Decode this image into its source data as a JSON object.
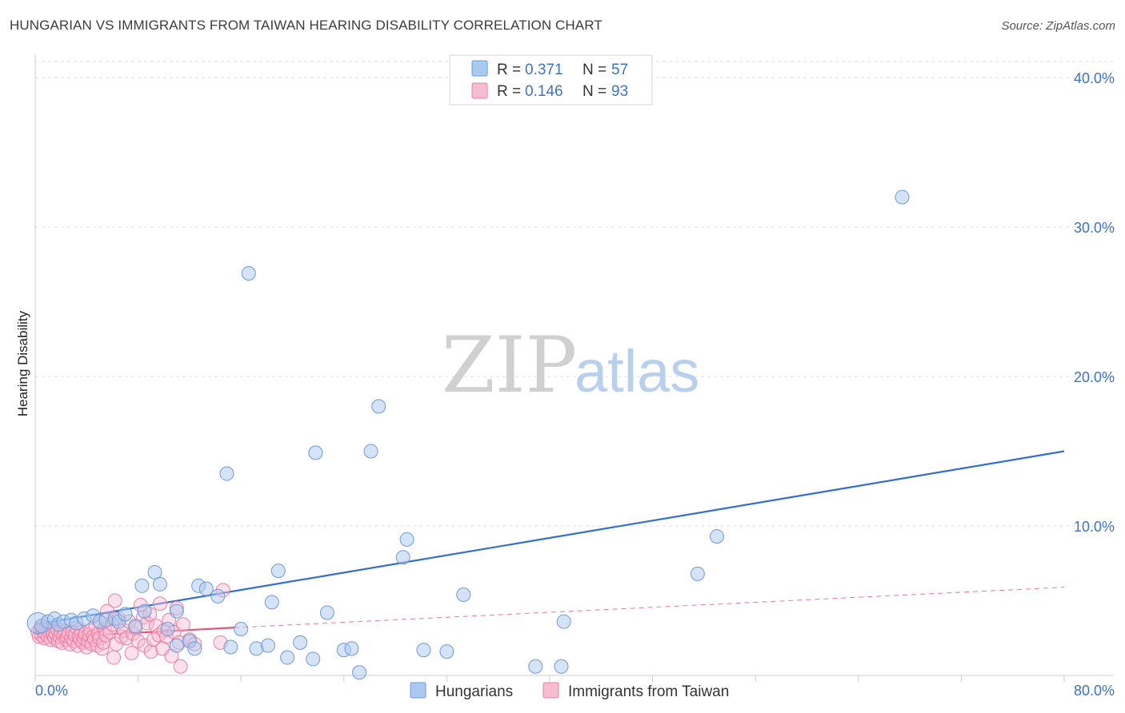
{
  "header": {
    "title": "HUNGARIAN VS IMMIGRANTS FROM TAIWAN HEARING DISABILITY CORRELATION CHART",
    "source": "Source: ZipAtlas.com"
  },
  "watermark": {
    "zip": "ZIP",
    "atlas": "atlas"
  },
  "legend": {
    "rows": [
      {
        "r_label": "R = ",
        "r_value": "0.371",
        "n_label": "N = ",
        "n_value": "57"
      },
      {
        "r_label": "R = ",
        "r_value": "0.146",
        "n_label": "N = ",
        "n_value": "93"
      }
    ]
  },
  "chart_data": {
    "type": "scatter",
    "title": "HUNGARIAN VS IMMIGRANTS FROM TAIWAN HEARING DISABILITY CORRELATION CHART",
    "xlabel": "",
    "ylabel": "Hearing Disability",
    "xlim": [
      0,
      80
    ],
    "ylim": [
      0,
      42
    ],
    "x_tick_labels": [
      "0.0%",
      "80.0%"
    ],
    "y_ticks": [
      10,
      20,
      30,
      40
    ],
    "y_tick_labels": [
      "10.0%",
      "20.0%",
      "30.0%",
      "40.0%"
    ],
    "grid": true,
    "legend_position": "top-center",
    "colors": {
      "hungarians_fill": "#aac8f0",
      "hungarians_stroke": "#6f9ad6",
      "hungarians_line": "#2f6fd1",
      "taiwan_fill": "#f8bcd0",
      "taiwan_stroke": "#ec7fa3",
      "taiwan_line": "#e6537f",
      "tick_text": "#3c72c8",
      "grid": "#dddddd"
    },
    "series": [
      {
        "name": "Hungarians",
        "r": 0.371,
        "n": 57,
        "trend": {
          "x": [
            0,
            80
          ],
          "y": [
            3.4,
            15.0
          ]
        },
        "points": [
          [
            0.2,
            3.5
          ],
          [
            0.5,
            3.3
          ],
          [
            1.0,
            3.6
          ],
          [
            1.5,
            3.8
          ],
          [
            1.8,
            3.4
          ],
          [
            2.2,
            3.6
          ],
          [
            2.8,
            3.7
          ],
          [
            3.2,
            3.5
          ],
          [
            3.8,
            3.8
          ],
          [
            4.5,
            4.0
          ],
          [
            5.0,
            3.6
          ],
          [
            5.5,
            3.7
          ],
          [
            6.2,
            3.8
          ],
          [
            6.5,
            3.6
          ],
          [
            7.0,
            4.1
          ],
          [
            7.8,
            3.3
          ],
          [
            8.5,
            4.3
          ],
          [
            8.3,
            6.0
          ],
          [
            9.3,
            6.9
          ],
          [
            9.7,
            6.1
          ],
          [
            10.3,
            3.1
          ],
          [
            11.0,
            4.3
          ],
          [
            11.0,
            2.0
          ],
          [
            12.0,
            2.3
          ],
          [
            12.4,
            1.8
          ],
          [
            12.7,
            6.0
          ],
          [
            13.3,
            5.8
          ],
          [
            14.2,
            5.3
          ],
          [
            14.9,
            13.5
          ],
          [
            15.2,
            1.9
          ],
          [
            16.0,
            3.1
          ],
          [
            16.6,
            26.9
          ],
          [
            17.2,
            1.8
          ],
          [
            18.1,
            2.0
          ],
          [
            18.4,
            4.9
          ],
          [
            18.9,
            7.0
          ],
          [
            19.6,
            1.2
          ],
          [
            20.6,
            2.2
          ],
          [
            21.6,
            1.1
          ],
          [
            21.8,
            14.9
          ],
          [
            22.7,
            4.2
          ],
          [
            24.0,
            1.7
          ],
          [
            24.6,
            1.8
          ],
          [
            25.2,
            0.2
          ],
          [
            26.1,
            15.0
          ],
          [
            26.7,
            18.0
          ],
          [
            28.6,
            7.9
          ],
          [
            28.9,
            9.1
          ],
          [
            30.2,
            1.7
          ],
          [
            32.0,
            1.6
          ],
          [
            33.3,
            5.4
          ],
          [
            38.9,
            0.6
          ],
          [
            40.9,
            0.6
          ],
          [
            41.1,
            3.6
          ],
          [
            51.5,
            6.8
          ],
          [
            53.0,
            9.3
          ],
          [
            67.4,
            32.0
          ]
        ]
      },
      {
        "name": "Immigrants from Taiwan",
        "r": 0.146,
        "n": 93,
        "trend": {
          "x": [
            0,
            15.5
          ],
          "y": [
            2.5,
            3.2
          ]
        },
        "trend_extended": {
          "x": [
            15.5,
            80
          ],
          "y": [
            3.2,
            5.9
          ]
        },
        "points": [
          [
            0.2,
            2.9
          ],
          [
            0.3,
            2.6
          ],
          [
            0.4,
            3.1
          ],
          [
            0.5,
            2.7
          ],
          [
            0.6,
            3.0
          ],
          [
            0.7,
            2.5
          ],
          [
            0.8,
            2.8
          ],
          [
            0.9,
            3.2
          ],
          [
            1.0,
            2.6
          ],
          [
            1.1,
            2.9
          ],
          [
            1.2,
            2.4
          ],
          [
            1.3,
            3.0
          ],
          [
            1.4,
            2.7
          ],
          [
            1.5,
            2.5
          ],
          [
            1.6,
            2.8
          ],
          [
            1.7,
            3.1
          ],
          [
            1.8,
            2.3
          ],
          [
            1.9,
            2.6
          ],
          [
            2.0,
            2.9
          ],
          [
            2.1,
            2.2
          ],
          [
            2.2,
            2.7
          ],
          [
            2.3,
            3.0
          ],
          [
            2.4,
            2.4
          ],
          [
            2.5,
            2.6
          ],
          [
            2.6,
            2.8
          ],
          [
            2.7,
            2.1
          ],
          [
            2.8,
            2.5
          ],
          [
            2.9,
            2.9
          ],
          [
            3.0,
            2.3
          ],
          [
            3.1,
            2.7
          ],
          [
            3.2,
            3.2
          ],
          [
            3.3,
            2.0
          ],
          [
            3.4,
            2.6
          ],
          [
            3.5,
            2.4
          ],
          [
            3.6,
            2.9
          ],
          [
            3.7,
            2.2
          ],
          [
            3.8,
            2.5
          ],
          [
            3.9,
            2.8
          ],
          [
            4.0,
            1.9
          ],
          [
            4.1,
            2.3
          ],
          [
            4.2,
            2.7
          ],
          [
            4.3,
            3.0
          ],
          [
            4.4,
            2.1
          ],
          [
            4.5,
            2.6
          ],
          [
            4.6,
            2.4
          ],
          [
            4.7,
            3.3
          ],
          [
            4.8,
            2.0
          ],
          [
            4.9,
            2.8
          ],
          [
            5.0,
            2.5
          ],
          [
            5.1,
            3.5
          ],
          [
            5.2,
            1.8
          ],
          [
            5.3,
            2.2
          ],
          [
            5.4,
            3.1
          ],
          [
            5.5,
            2.7
          ],
          [
            5.6,
            4.3
          ],
          [
            5.8,
            2.9
          ],
          [
            6.0,
            3.4
          ],
          [
            6.1,
            1.2
          ],
          [
            6.2,
            5.0
          ],
          [
            6.3,
            2.1
          ],
          [
            6.5,
            3.8
          ],
          [
            6.7,
            2.6
          ],
          [
            6.9,
            3.0
          ],
          [
            7.1,
            2.5
          ],
          [
            7.3,
            3.6
          ],
          [
            7.5,
            1.5
          ],
          [
            7.6,
            2.8
          ],
          [
            7.8,
            3.2
          ],
          [
            8.0,
            2.3
          ],
          [
            8.2,
            4.7
          ],
          [
            8.4,
            3.9
          ],
          [
            8.5,
            2.0
          ],
          [
            8.7,
            3.5
          ],
          [
            8.9,
            4.1
          ],
          [
            9.0,
            1.6
          ],
          [
            9.2,
            2.4
          ],
          [
            9.4,
            3.3
          ],
          [
            9.6,
            2.7
          ],
          [
            9.7,
            4.8
          ],
          [
            9.9,
            1.8
          ],
          [
            10.0,
            3.0
          ],
          [
            10.2,
            2.6
          ],
          [
            10.4,
            3.7
          ],
          [
            10.6,
            1.3
          ],
          [
            10.8,
            2.9
          ],
          [
            11.0,
            4.5
          ],
          [
            11.2,
            2.2
          ],
          [
            11.3,
            0.6
          ],
          [
            11.5,
            3.4
          ],
          [
            12.0,
            2.4
          ],
          [
            12.4,
            2.1
          ],
          [
            14.4,
            2.2
          ],
          [
            14.6,
            5.7
          ]
        ]
      }
    ]
  },
  "bottom_legend": {
    "items": [
      {
        "label": "Hungarians"
      },
      {
        "label": "Immigrants from Taiwan"
      }
    ]
  }
}
